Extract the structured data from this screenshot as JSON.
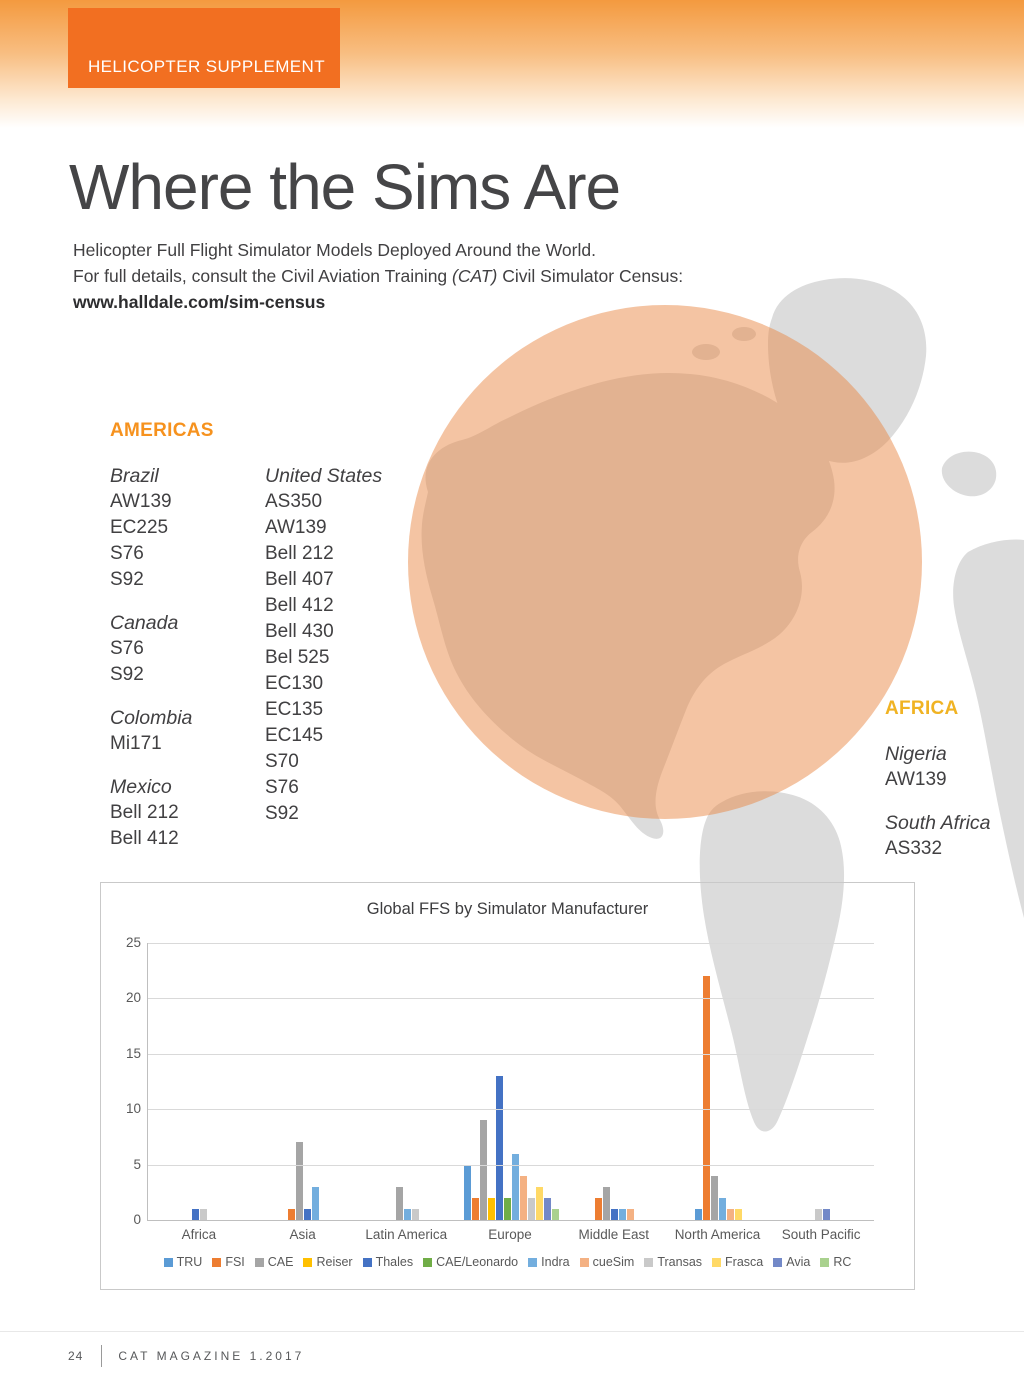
{
  "header": {
    "tag_label": "HELICOPTER SUPPLEMENT"
  },
  "hero": {
    "title": "Where the Sims Are",
    "line1": "Helicopter Full Flight Simulator Models Deployed Around the World.",
    "line2_pre": "For full details, consult the Civil Aviation Training ",
    "line2_em": "(CAT)",
    "line2_post": " Civil Simulator Census:",
    "census_link": "www.halldale.com/sim-census"
  },
  "map": {
    "land_color": "#DCDCDC",
    "highlight_color": "#E8833E"
  },
  "regions": {
    "americas": {
      "title": "AMERICAS",
      "accent": "#F6921E",
      "columns": [
        [
          {
            "country": "Brazil",
            "models": [
              "AW139",
              "EC225",
              "S76",
              "S92"
            ]
          },
          {
            "country": "Canada",
            "models": [
              "S76",
              "S92"
            ]
          },
          {
            "country": "Colombia",
            "models": [
              "Mi171"
            ]
          },
          {
            "country": "Mexico",
            "models": [
              "Bell 212",
              "Bell 412"
            ]
          }
        ],
        [
          {
            "country": "United States",
            "models": [
              "AS350",
              "AW139",
              "Bell 212",
              "Bell 407",
              "Bell 412",
              "Bell 430",
              "Bel 525",
              "EC130",
              "EC135",
              "EC145",
              "S70",
              "S76",
              "S92"
            ]
          }
        ]
      ]
    },
    "africa": {
      "title": "AFRICA",
      "accent": "#F0B323",
      "columns": [
        [
          {
            "country": "Nigeria",
            "models": [
              "AW139"
            ]
          },
          {
            "country": "South Africa",
            "models": [
              "AS332"
            ]
          }
        ]
      ]
    }
  },
  "chart_data": {
    "type": "bar",
    "title": "Global FFS by Simulator Manufacturer",
    "categories": [
      "Africa",
      "Asia",
      "Latin America",
      "Europe",
      "Middle East",
      "North America",
      "South Pacific"
    ],
    "series": [
      {
        "name": "TRU",
        "color": "#5B9BD5",
        "values": [
          0,
          0,
          0,
          5,
          0,
          1,
          0
        ]
      },
      {
        "name": "FSI",
        "color": "#ED7D31",
        "values": [
          0,
          1,
          0,
          2,
          2,
          22,
          0
        ]
      },
      {
        "name": "CAE",
        "color": "#A5A5A5",
        "values": [
          0,
          7,
          3,
          9,
          3,
          4,
          0
        ]
      },
      {
        "name": "Reiser",
        "color": "#FFC000",
        "values": [
          0,
          0,
          0,
          2,
          0,
          0,
          0
        ]
      },
      {
        "name": "Thales",
        "color": "#4472C4",
        "values": [
          1,
          1,
          0,
          13,
          1,
          0,
          0
        ]
      },
      {
        "name": "CAE/Leonardo",
        "color": "#70AD47",
        "values": [
          0,
          0,
          0,
          2,
          0,
          0,
          0
        ]
      },
      {
        "name": "Indra",
        "color": "#73AEDE",
        "values": [
          0,
          3,
          1,
          6,
          1,
          2,
          0
        ]
      },
      {
        "name": "cueSim",
        "color": "#F4B183",
        "values": [
          0,
          0,
          0,
          4,
          1,
          1,
          0
        ]
      },
      {
        "name": "Transas",
        "color": "#C9C9C9",
        "values": [
          1,
          0,
          1,
          2,
          0,
          0,
          1
        ]
      },
      {
        "name": "Frasca",
        "color": "#FFD966",
        "values": [
          0,
          0,
          0,
          3,
          0,
          1,
          0
        ]
      },
      {
        "name": "Avia",
        "color": "#7389C8",
        "values": [
          0,
          0,
          0,
          2,
          0,
          0,
          1
        ]
      },
      {
        "name": "RC",
        "color": "#A9D18E",
        "values": [
          0,
          0,
          0,
          1,
          0,
          0,
          0
        ]
      }
    ],
    "ylim": [
      0,
      25
    ],
    "yticks": [
      0,
      5,
      10,
      15,
      20,
      25
    ],
    "grid": true,
    "legend_position": "bottom"
  },
  "footer": {
    "page_number": "24",
    "magazine_label": "CAT MAGAZINE 1.2017"
  }
}
